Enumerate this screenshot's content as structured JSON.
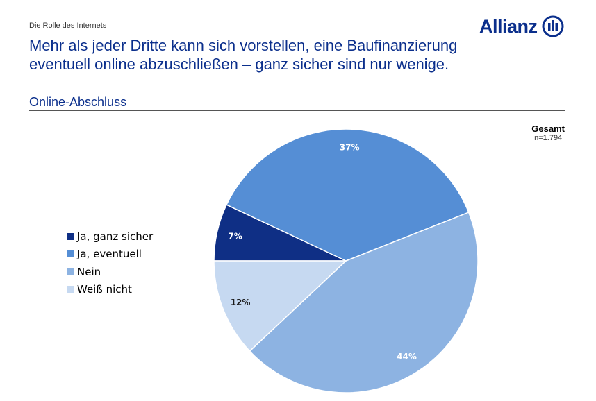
{
  "header": {
    "section": "Die Rolle des Internets",
    "title": "Mehr als jeder Dritte kann sich vorstellen, eine Baufinanzierung eventuell online abzuschließen – ganz sicher sind nur wenige.",
    "logo": "Allianz",
    "logo_icon": "allianz-eagle-emblem",
    "brand_color": "#0b2f8c"
  },
  "chart_data": {
    "type": "pie",
    "title": "Online-Abschluss",
    "annotation": {
      "label": "Gesamt",
      "n": "n=1.794"
    },
    "legend_placement": "left",
    "start_angle_deg": 270,
    "direction": "clockwise",
    "categories": [
      "Ja, ganz sicher",
      "Ja, eventuell",
      "Nein",
      "Weiß nicht"
    ],
    "values": [
      7,
      37,
      44,
      12
    ],
    "labels": [
      "7%",
      "37%",
      "44%",
      "12%"
    ],
    "colors": [
      "#0f2f85",
      "#558ed5",
      "#8db3e2",
      "#c6d9f1"
    ]
  }
}
